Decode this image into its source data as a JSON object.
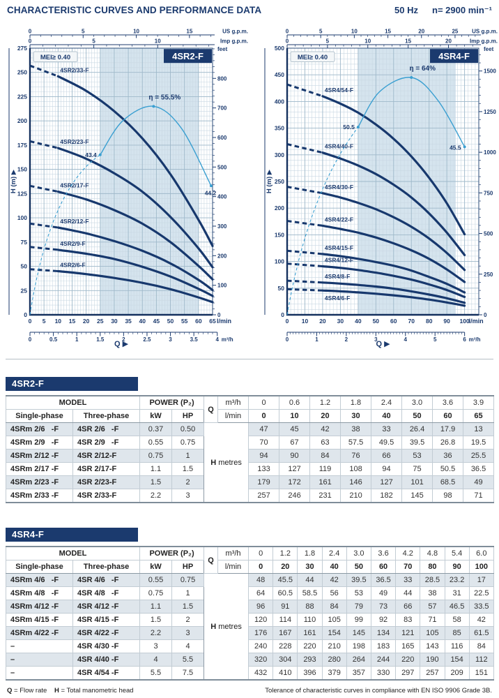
{
  "header": {
    "title": "CHARACTERISTIC CURVES AND PERFORMANCE DATA",
    "frequency": "50 Hz",
    "speed": "n= 2900 min⁻¹"
  },
  "colors": {
    "navy": "#1b3a6e",
    "curve": "#17386d",
    "eff": "#3a9fd1",
    "band": "#d5e4ee",
    "grid_minor": "#c9d8e3",
    "grid_major": "#9fb9ca",
    "frame": "#2c4d79",
    "axis": "#14305e"
  },
  "chart_data": [
    {
      "type": "line",
      "title": "4SR2-F",
      "mei_label": "MEI≥ 0.40",
      "ylabel": "H (m) ▶",
      "xlabel": "Q  ▶",
      "x_unit": "l/min",
      "x2_unit": "m³/h",
      "top_units": [
        "US g.p.m.",
        "Imp g.p.m."
      ],
      "right_unit": "feet",
      "xlim": [
        0,
        65
      ],
      "ylim": [
        0,
        275
      ],
      "x_draw_max": 65,
      "x_label_max": 65,
      "x_major": 5,
      "x_minor": 1,
      "y_major": 25,
      "y_minor": 5,
      "band": [
        25,
        60
      ],
      "us": {
        "factor": 3.785,
        "minor_max": 17
      },
      "imp": {
        "factor": 4.546,
        "minor_max": 14
      },
      "feet": {
        "label_step": 100,
        "minor_step": 20,
        "minor_max": 900,
        "label_max": 800
      },
      "m3h": {
        "factor": 16.6667,
        "label_step": 0.5,
        "minor_step": 0.1,
        "max": 4
      },
      "q": [
        0,
        10,
        20,
        30,
        40,
        50,
        60,
        65
      ],
      "dash_end": 10,
      "series": [
        {
          "name": "4SR2/6-F",
          "values": [
            47,
            45,
            42,
            38,
            33,
            26.4,
            17.9,
            13
          ]
        },
        {
          "name": "4SR2/9-F",
          "values": [
            70,
            67,
            63,
            57.5,
            49.5,
            39.5,
            26.8,
            19.5
          ]
        },
        {
          "name": "4SR2/12-F",
          "values": [
            94,
            90,
            84,
            76,
            66,
            53,
            36,
            25.5
          ]
        },
        {
          "name": "4SR2/17-F",
          "values": [
            133,
            127,
            119,
            108,
            94,
            75,
            50.5,
            36.5
          ]
        },
        {
          "name": "4SR2/23-F",
          "values": [
            179,
            172,
            161,
            146,
            127,
            101,
            68.5,
            49
          ]
        },
        {
          "name": "4SR2/33-F",
          "values": [
            257,
            246,
            231,
            210,
            182,
            145,
            98,
            71
          ]
        }
      ],
      "efficiency": {
        "dash": [
          [
            0,
            0
          ],
          [
            7,
            130
          ],
          [
            25,
            165
          ]
        ],
        "solid": [
          [
            25,
            165
          ],
          [
            33,
            200
          ],
          [
            44,
            215
          ],
          [
            54,
            192
          ],
          [
            64.5,
            133
          ]
        ],
        "peak_index": 2,
        "peak_label": "η = 55.5%",
        "start_label": "43.4",
        "end_label": "44.2",
        "end_label_pos": "below"
      }
    },
    {
      "type": "line",
      "title": "4SR4-F",
      "mei_label": "MEI≥ 0.40",
      "ylabel": "H (m) ▶",
      "xlabel": "Q  ▶",
      "x_unit": "l/min",
      "x2_unit": "m³/h",
      "top_units": [
        "US g.p.m.",
        "Imp g.p.m."
      ],
      "right_unit": "feet",
      "xlim": [
        0,
        100
      ],
      "ylim": [
        0,
        500
      ],
      "x_draw_max": 108,
      "x_label_max": 100,
      "x_major": 10,
      "x_minor": 2,
      "y_major": 50,
      "y_minor": 10,
      "band": [
        40,
        95
      ],
      "us": {
        "factor": 3.785,
        "minor_max": 28
      },
      "imp": {
        "factor": 4.546,
        "minor_max": 23
      },
      "feet": {
        "label_step": 250,
        "minor_step": 50,
        "minor_max": 1600,
        "label_max": 1500
      },
      "m3h": {
        "factor": 16.6667,
        "label_step": 1,
        "minor_step": 0.1,
        "max": 6
      },
      "q": [
        0,
        20,
        30,
        40,
        50,
        60,
        70,
        80,
        90,
        100
      ],
      "dash_end": 20,
      "series": [
        {
          "name": "4SR4/6-F",
          "label_below": true,
          "values": [
            48,
            45.5,
            44,
            42,
            39.5,
            36.5,
            33,
            28.5,
            23.2,
            17
          ]
        },
        {
          "name": "4SR4/8-F",
          "values": [
            64,
            60.5,
            58.5,
            56,
            53,
            49,
            44,
            38,
            31,
            22.5
          ]
        },
        {
          "name": "4SR4/12-F",
          "values": [
            96,
            91,
            88,
            84,
            79,
            73,
            66,
            57,
            46.5,
            33.5
          ]
        },
        {
          "name": "4SR4/15-F",
          "values": [
            120,
            114,
            110,
            105,
            99,
            92,
            83,
            71,
            58,
            42
          ]
        },
        {
          "name": "4SR4/22-F",
          "values": [
            176,
            167,
            161,
            154,
            145,
            134,
            121,
            105,
            85,
            61.5
          ]
        },
        {
          "name": "4SR4/30-F",
          "values": [
            240,
            228,
            220,
            210,
            198,
            183,
            165,
            143,
            116,
            84
          ]
        },
        {
          "name": "4SR4/40-F",
          "values": [
            320,
            304,
            293,
            280,
            264,
            244,
            220,
            190,
            154,
            112
          ]
        },
        {
          "name": "4SR4/54-F",
          "values": [
            432,
            410,
            396,
            379,
            357,
            330,
            297,
            257,
            209,
            151
          ]
        }
      ],
      "efficiency": {
        "dash": [
          [
            0,
            0
          ],
          [
            12,
            230
          ],
          [
            40,
            352
          ]
        ],
        "solid": [
          [
            40,
            352
          ],
          [
            52,
            418
          ],
          [
            70,
            445
          ],
          [
            85,
            402
          ],
          [
            100,
            315
          ]
        ],
        "peak_index": 2,
        "peak_label": "η = 64%",
        "start_label": "50.5",
        "end_label": "45.5",
        "end_label_pos": "left"
      }
    }
  ],
  "tables": [
    {
      "band_label": "4SR2-F",
      "head": {
        "model": "MODEL",
        "power": "POWER (P₂)",
        "single": "Single-phase",
        "three": "Three-phase",
        "kw": "kW",
        "hp": "HP",
        "q": "Q",
        "m3h": "m³/h",
        "lmin": "l/min",
        "h": "H",
        "h_unit": "metres"
      },
      "m3h_values": [
        "0",
        "0.6",
        "1.2",
        "1.8",
        "2.4",
        "3.0",
        "3.6",
        "3.9"
      ],
      "lmin_values": [
        "0",
        "10",
        "20",
        "30",
        "40",
        "50",
        "60",
        "65"
      ],
      "rows": [
        {
          "single": "4SRm 2/6   -F",
          "three": "4SR 2/6   -F",
          "kw": "0.37",
          "hp": "0.50",
          "h": [
            "47",
            "45",
            "42",
            "38",
            "33",
            "26.4",
            "17.9",
            "13"
          ]
        },
        {
          "single": "4SRm 2/9   -F",
          "three": "4SR 2/9   -F",
          "kw": "0.55",
          "hp": "0.75",
          "h": [
            "70",
            "67",
            "63",
            "57.5",
            "49.5",
            "39.5",
            "26.8",
            "19.5"
          ]
        },
        {
          "single": "4SRm 2/12 -F",
          "three": "4SR 2/12-F",
          "kw": "0.75",
          "hp": "1",
          "h": [
            "94",
            "90",
            "84",
            "76",
            "66",
            "53",
            "36",
            "25.5"
          ]
        },
        {
          "single": "4SRm 2/17 -F",
          "three": "4SR 2/17-F",
          "kw": "1.1",
          "hp": "1.5",
          "h": [
            "133",
            "127",
            "119",
            "108",
            "94",
            "75",
            "50.5",
            "36.5"
          ]
        },
        {
          "single": "4SRm 2/23 -F",
          "three": "4SR 2/23-F",
          "kw": "1.5",
          "hp": "2",
          "h": [
            "179",
            "172",
            "161",
            "146",
            "127",
            "101",
            "68.5",
            "49"
          ]
        },
        {
          "single": "4SRm 2/33 -F",
          "three": "4SR 2/33-F",
          "kw": "2.2",
          "hp": "3",
          "h": [
            "257",
            "246",
            "231",
            "210",
            "182",
            "145",
            "98",
            "71"
          ]
        }
      ]
    },
    {
      "band_label": "4SR4-F",
      "head": {
        "model": "MODEL",
        "power": "POWER (P₂)",
        "single": "Single-phase",
        "three": "Three-phase",
        "kw": "kW",
        "hp": "HP",
        "q": "Q",
        "m3h": "m³/h",
        "lmin": "l/min",
        "h": "H",
        "h_unit": "metres"
      },
      "m3h_values": [
        "0",
        "1.2",
        "1.8",
        "2.4",
        "3.0",
        "3.6",
        "4.2",
        "4.8",
        "5.4",
        "6.0"
      ],
      "lmin_values": [
        "0",
        "20",
        "30",
        "40",
        "50",
        "60",
        "70",
        "80",
        "90",
        "100"
      ],
      "rows": [
        {
          "single": "4SRm 4/6   -F",
          "three": "4SR 4/6   -F",
          "kw": "0.55",
          "hp": "0.75",
          "h": [
            "48",
            "45.5",
            "44",
            "42",
            "39.5",
            "36.5",
            "33",
            "28.5",
            "23.2",
            "17"
          ]
        },
        {
          "single": "4SRm 4/8   -F",
          "three": "4SR 4/8   -F",
          "kw": "0.75",
          "hp": "1",
          "h": [
            "64",
            "60.5",
            "58.5",
            "56",
            "53",
            "49",
            "44",
            "38",
            "31",
            "22.5"
          ]
        },
        {
          "single": "4SRm 4/12 -F",
          "three": "4SR 4/12 -F",
          "kw": "1.1",
          "hp": "1.5",
          "h": [
            "96",
            "91",
            "88",
            "84",
            "79",
            "73",
            "66",
            "57",
            "46.5",
            "33.5"
          ]
        },
        {
          "single": "4SRm 4/15 -F",
          "three": "4SR 4/15 -F",
          "kw": "1.5",
          "hp": "2",
          "h": [
            "120",
            "114",
            "110",
            "105",
            "99",
            "92",
            "83",
            "71",
            "58",
            "42"
          ]
        },
        {
          "single": "4SRm 4/22 -F",
          "three": "4SR 4/22 -F",
          "kw": "2.2",
          "hp": "3",
          "h": [
            "176",
            "167",
            "161",
            "154",
            "145",
            "134",
            "121",
            "105",
            "85",
            "61.5"
          ]
        },
        {
          "single": "–",
          "three": "4SR 4/30 -F",
          "kw": "3",
          "hp": "4",
          "h": [
            "240",
            "228",
            "220",
            "210",
            "198",
            "183",
            "165",
            "143",
            "116",
            "84"
          ]
        },
        {
          "single": "–",
          "three": "4SR 4/40 -F",
          "kw": "4",
          "hp": "5.5",
          "h": [
            "320",
            "304",
            "293",
            "280",
            "264",
            "244",
            "220",
            "190",
            "154",
            "112"
          ]
        },
        {
          "single": "–",
          "three": "4SR 4/54 -F",
          "kw": "5.5",
          "hp": "7.5",
          "h": [
            "432",
            "410",
            "396",
            "379",
            "357",
            "330",
            "297",
            "257",
            "209",
            "151"
          ]
        }
      ]
    }
  ],
  "footer": {
    "q_bold": "Q",
    "q_rest": " = Flow rate",
    "h_bold": "H",
    "h_rest": " = Total manometric head",
    "right": "Tolerance of characteristic curves in compliance with EN ISO 9906 Grade 3B."
  }
}
